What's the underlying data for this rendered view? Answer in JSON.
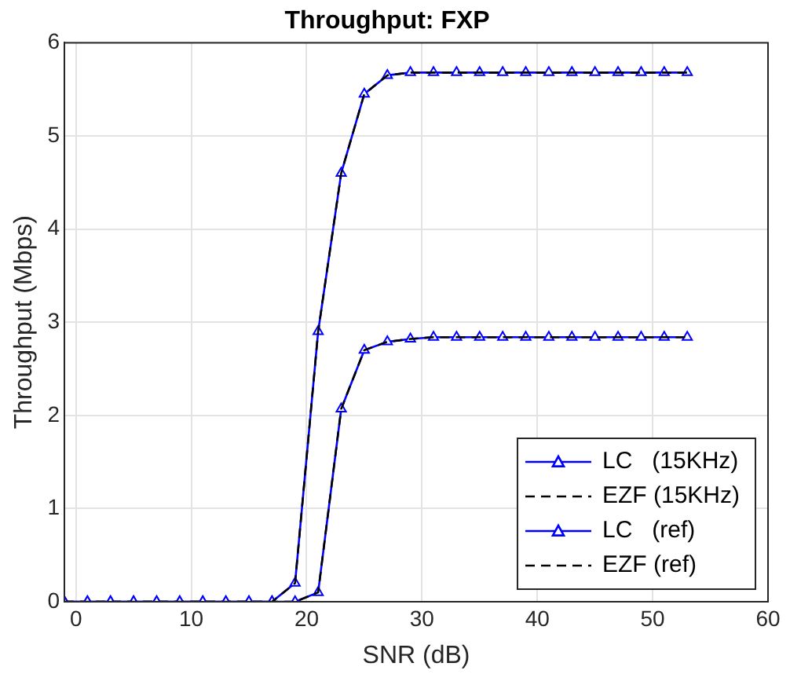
{
  "chart_data": {
    "type": "line",
    "title": "Throughput: FXP",
    "xlabel": "SNR (dB)",
    "ylabel": "Throughput (Mbps)",
    "x": [
      -1,
      1,
      3,
      5,
      7,
      9,
      11,
      13,
      15,
      17,
      19,
      21,
      23,
      25,
      27,
      29,
      31,
      33,
      35,
      37,
      39,
      41,
      43,
      45,
      47,
      49,
      51,
      53
    ],
    "xlim": [
      -1,
      60
    ],
    "xticks": [
      0,
      10,
      20,
      30,
      40,
      50,
      60
    ],
    "ylim": [
      0,
      6
    ],
    "yticks": [
      0,
      1,
      2,
      3,
      4,
      5,
      6
    ],
    "grid": true,
    "legend": "bottom right",
    "series": [
      {
        "name": "LC   (15KHz)",
        "color": "#0000ff",
        "marker": "triangle",
        "line_style": "solid",
        "values": [
          0,
          0,
          0,
          0,
          0,
          0,
          0,
          0,
          0,
          0,
          0,
          0.1,
          2.07,
          2.7,
          2.79,
          2.82,
          2.84,
          2.84,
          2.84,
          2.84,
          2.84,
          2.84,
          2.84,
          2.84,
          2.84,
          2.84,
          2.84,
          2.84
        ]
      },
      {
        "name": "EZF (15KHz)",
        "color": "#000000",
        "marker": "none",
        "line_style": "dashed",
        "values": [
          0,
          0,
          0,
          0,
          0,
          0,
          0,
          0,
          0,
          0,
          0,
          0.1,
          2.07,
          2.7,
          2.79,
          2.82,
          2.84,
          2.84,
          2.84,
          2.84,
          2.84,
          2.84,
          2.84,
          2.84,
          2.84,
          2.84,
          2.84,
          2.84
        ]
      },
      {
        "name": "LC   (ref)",
        "color": "#0000ff",
        "marker": "triangle",
        "line_style": "solid",
        "values": [
          0,
          0,
          0,
          0,
          0,
          0,
          0,
          0,
          0,
          0,
          0.2,
          2.9,
          4.6,
          5.45,
          5.65,
          5.68,
          5.68,
          5.68,
          5.68,
          5.68,
          5.68,
          5.68,
          5.68,
          5.68,
          5.68,
          5.68,
          5.68,
          5.68
        ]
      },
      {
        "name": "EZF (ref)",
        "color": "#000000",
        "marker": "none",
        "line_style": "dashed",
        "values": [
          0,
          0,
          0,
          0,
          0,
          0,
          0,
          0,
          0,
          0,
          0.2,
          2.9,
          4.6,
          5.45,
          5.65,
          5.68,
          5.68,
          5.68,
          5.68,
          5.68,
          5.68,
          5.68,
          5.68,
          5.68,
          5.68,
          5.68,
          5.68,
          5.68
        ]
      }
    ]
  }
}
